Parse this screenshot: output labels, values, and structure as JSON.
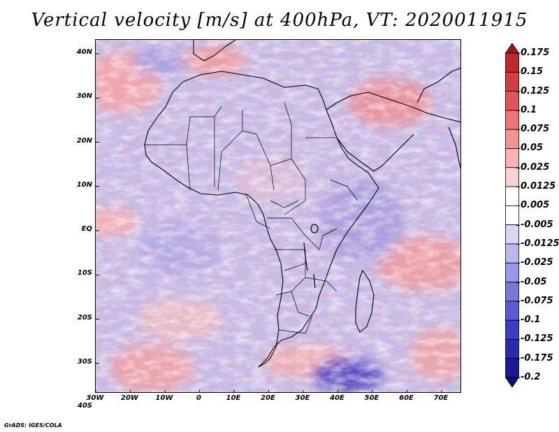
{
  "title": "Vertical velocity [m/s] at 400hPa, VT: 2020011915",
  "footer": "GrADS: IGES/COLA",
  "map": {
    "y_ticks": [
      "40N",
      "30N",
      "20N",
      "10N",
      "EQ",
      "10S",
      "20S",
      "30S",
      "40S"
    ],
    "x_ticks": [
      "30W",
      "20W",
      "10W",
      "0",
      "10E",
      "20E",
      "30E",
      "40E",
      "50E",
      "60E",
      "70E"
    ],
    "lon_range": [
      -30,
      75
    ],
    "lat_range": [
      -40,
      45
    ]
  },
  "colorbar": {
    "labels": [
      "0.175",
      "0.15",
      "0.125",
      "0.1",
      "0.075",
      "0.05",
      "0.025",
      "0.0125",
      "0.005",
      "-0.005",
      "-0.0125",
      "-0.025",
      "-0.05",
      "-0.075",
      "-0.1",
      "-0.125",
      "-0.175",
      "-0.2"
    ],
    "colors": [
      "#a50f15",
      "#c0282a",
      "#d43d3d",
      "#e35555",
      "#ee7373",
      "#f59393",
      "#f9b2b2",
      "#fcd0d0",
      "#ffffff",
      "#ffffff",
      "#d6d6f5",
      "#b8b8ee",
      "#9898e6",
      "#7878dc",
      "#5a5ad2",
      "#3c3cc4",
      "#2a2aaf",
      "#1a1a96",
      "#0d0d80"
    ]
  }
}
